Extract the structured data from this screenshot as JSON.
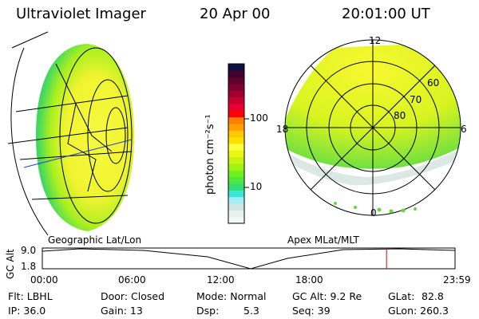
{
  "header": {
    "instrument": "Ultraviolet Imager",
    "date": "20 Apr 00",
    "time": "20:01:00 UT"
  },
  "colorbar": {
    "label": "photon cm⁻²s⁻¹",
    "ticks": [
      "100",
      "10"
    ],
    "colors": [
      "#f4f8f4",
      "#e6f2ee",
      "#d0e4e2",
      "#a0eef4",
      "#38e6d8",
      "#30e070",
      "#50e840",
      "#70f020",
      "#a0f410",
      "#c8f410",
      "#e8f810",
      "#ffff40",
      "#ffe000",
      "#ffc800",
      "#ffa000",
      "#ff8000",
      "#ff0000",
      "#e80030",
      "#c80030",
      "#a00030",
      "#800030",
      "#600030",
      "#400030",
      "#101040"
    ]
  },
  "polar": {
    "labels": {
      "top": "12",
      "bottom": "0",
      "left": "18",
      "right": "6"
    },
    "lat_labels": [
      "80",
      "70",
      "60"
    ]
  },
  "timeline": {
    "left_label": "Geographic Lat/Lon",
    "right_label": "Apex MLat/MLT",
    "y_axis_label": "GC Alt",
    "y_ticks": [
      "9.0",
      "1.8"
    ],
    "x_ticks": [
      "00:00",
      "06:00",
      "12:00",
      "18:00",
      "23:59"
    ],
    "current_time_fraction": 0.834
  },
  "info": {
    "flt": "Flt: LBHL",
    "ip": "IP: 36.0",
    "door": "Door: Closed",
    "gain": "Gain: 13",
    "mode": "Mode: Normal",
    "dsp_label": "Dsp:",
    "dsp_value": "5.3",
    "gcalt": "GC Alt: 9.2 Re",
    "seq": "Seq: 39",
    "glat_label": "GLat:",
    "glat_value": "82.8",
    "glon": "GLon: 260.3"
  }
}
